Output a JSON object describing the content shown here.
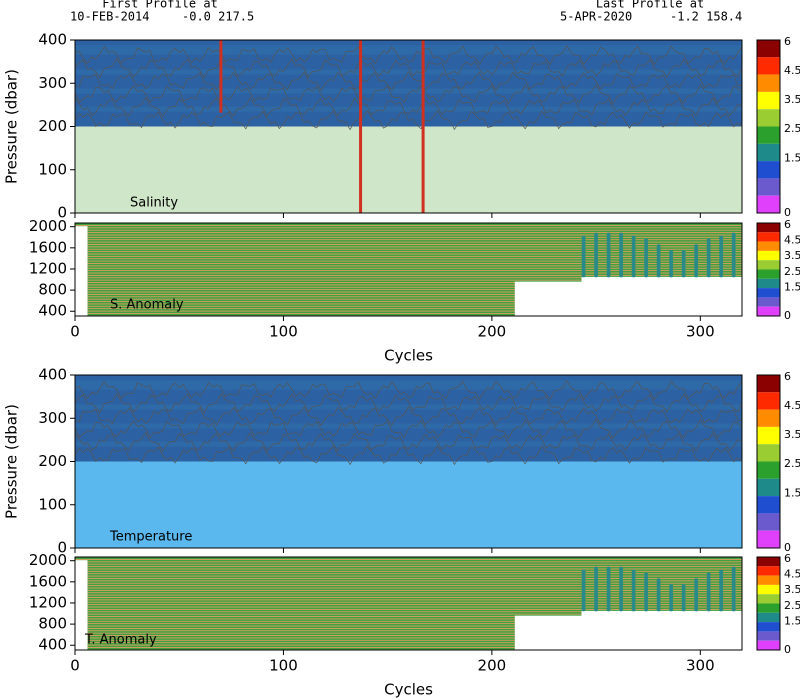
{
  "header": {
    "first_label": "First Profile at",
    "first_date": "10-FEB-2014",
    "first_pos": "-0.0 217.5",
    "last_label": "Last Profile at",
    "last_date": "5-APR-2020",
    "last_pos": "-1.2 158.4"
  },
  "chart_data": [
    {
      "type": "heatmap",
      "title": "Salinity",
      "ylabel": "Pressure (dbar)",
      "xlim": [
        0,
        320
      ],
      "xticks": [
        0,
        100,
        200,
        300
      ],
      "ylim": [
        400,
        0
      ],
      "yticks": [
        0,
        100,
        200,
        300,
        400
      ],
      "colorbar": {
        "ticks": [
          6,
          4.5,
          3.5,
          2.5,
          1.5,
          0
        ],
        "colors": [
          "#8b0000",
          "#ff2a00",
          "#ff8c00",
          "#ffff00",
          "#9acd32",
          "#2ca02c",
          "#1f8a8a",
          "#1f4fd0",
          "#6a5acd",
          "#e040fb"
        ]
      }
    },
    {
      "type": "heatmap",
      "title": "S. Anomaly",
      "xlabel": "Cycles",
      "xlim": [
        0,
        320
      ],
      "xticks": [
        0,
        100,
        200,
        300
      ],
      "ylim": [
        2070,
        310
      ],
      "yticks": [
        400,
        800,
        1200,
        1600,
        2000
      ],
      "colorbar": {
        "ticks": [
          6,
          4.5,
          3.5,
          2.5,
          1.5,
          0
        ],
        "colors": [
          "#8b0000",
          "#ff2a00",
          "#ff8c00",
          "#ffff00",
          "#9acd32",
          "#2ca02c",
          "#1f8a8a",
          "#1f4fd0",
          "#6a5acd",
          "#e040fb"
        ]
      }
    },
    {
      "type": "heatmap",
      "title": "Temperature",
      "ylabel": "Pressure (dbar)",
      "xlim": [
        0,
        320
      ],
      "xticks": [
        0,
        100,
        200,
        300
      ],
      "ylim": [
        400,
        0
      ],
      "yticks": [
        0,
        100,
        200,
        300,
        400
      ],
      "colorbar": {
        "ticks": [
          6,
          4.5,
          3.5,
          2.5,
          1.5,
          0
        ],
        "colors": [
          "#8b0000",
          "#ff2a00",
          "#ff8c00",
          "#ffff00",
          "#9acd32",
          "#2ca02c",
          "#1f8a8a",
          "#1f4fd0",
          "#6a5acd",
          "#e040fb"
        ]
      }
    },
    {
      "type": "heatmap",
      "title": "T. Anomaly",
      "xlabel": "Cycles",
      "xlim": [
        0,
        320
      ],
      "xticks": [
        0,
        100,
        200,
        300
      ],
      "ylim": [
        2070,
        310
      ],
      "yticks": [
        400,
        800,
        1200,
        1600,
        2000
      ],
      "colorbar": {
        "ticks": [
          6,
          4.5,
          3.5,
          2.5,
          1.5,
          0
        ],
        "colors": [
          "#8b0000",
          "#ff2a00",
          "#ff8c00",
          "#ffff00",
          "#9acd32",
          "#2ca02c",
          "#1f8a8a",
          "#1f4fd0",
          "#6a5acd",
          "#e040fb"
        ]
      }
    }
  ]
}
